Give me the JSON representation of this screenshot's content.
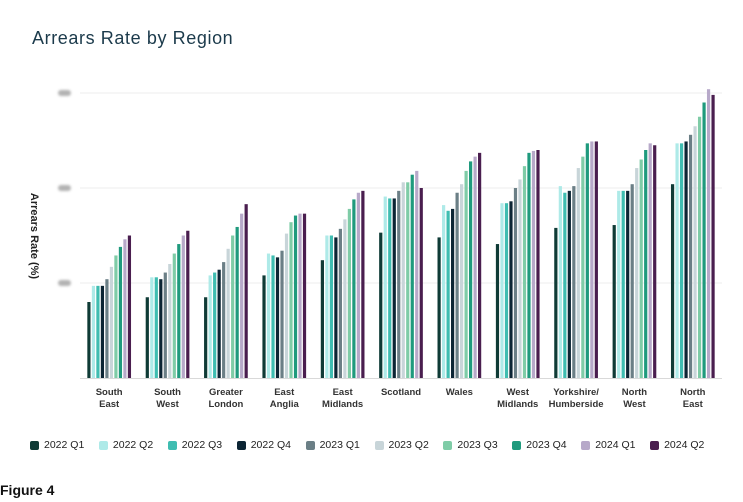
{
  "chart_data": {
    "type": "bar",
    "title": "Arrears Rate by Region",
    "xlabel": "",
    "ylabel": "Arrears Rate (%)",
    "ylim": [
      0,
      3.0
    ],
    "y_ticks": [
      1.0,
      2.0,
      3.0
    ],
    "y_ticks_obscured": true,
    "grid": true,
    "legend_position": "bottom",
    "categories": [
      [
        "South",
        "East"
      ],
      [
        "South",
        "West"
      ],
      [
        "Greater",
        "London"
      ],
      [
        "East",
        "Anglia"
      ],
      [
        "East",
        "Midlands"
      ],
      [
        "Scotland"
      ],
      [
        "Wales"
      ],
      [
        "West",
        "Midlands"
      ],
      [
        "Yorkshire/",
        "Humberside"
      ],
      [
        "North",
        "West"
      ],
      [
        "North",
        "East"
      ]
    ],
    "series": [
      {
        "name": "2022 Q1",
        "color": "#0f3b36",
        "values": [
          0.8,
          0.85,
          0.85,
          1.08,
          1.24,
          1.53,
          1.48,
          1.41,
          1.58,
          1.61,
          2.04
        ]
      },
      {
        "name": "2022 Q2",
        "color": "#aeeae8",
        "values": [
          0.97,
          1.06,
          1.08,
          1.31,
          1.5,
          1.91,
          1.82,
          1.84,
          2.02,
          1.97,
          2.47
        ]
      },
      {
        "name": "2022 Q3",
        "color": "#3fbdb1",
        "values": [
          0.97,
          1.06,
          1.11,
          1.29,
          1.5,
          1.89,
          1.76,
          1.84,
          1.95,
          1.97,
          2.47
        ]
      },
      {
        "name": "2022 Q4",
        "color": "#0c2534",
        "values": [
          0.97,
          1.04,
          1.14,
          1.27,
          1.48,
          1.89,
          1.78,
          1.86,
          1.97,
          1.97,
          2.49
        ]
      },
      {
        "name": "2023 Q1",
        "color": "#6b7f86",
        "values": [
          1.04,
          1.11,
          1.22,
          1.34,
          1.57,
          1.97,
          1.95,
          2.0,
          2.02,
          2.04,
          2.56
        ]
      },
      {
        "name": "2023 Q2",
        "color": "#c8d5d9",
        "values": [
          1.17,
          1.2,
          1.36,
          1.52,
          1.67,
          2.06,
          2.04,
          2.09,
          2.21,
          2.21,
          2.65
        ]
      },
      {
        "name": "2023 Q3",
        "color": "#7fcca7",
        "values": [
          1.29,
          1.31,
          1.5,
          1.64,
          1.78,
          2.06,
          2.18,
          2.23,
          2.33,
          2.3,
          2.75
        ]
      },
      {
        "name": "2023 Q4",
        "color": "#1f9a7d",
        "values": [
          1.38,
          1.41,
          1.59,
          1.71,
          1.88,
          2.14,
          2.28,
          2.37,
          2.47,
          2.4,
          2.9
        ]
      },
      {
        "name": "2024 Q1",
        "color": "#b7a9c9",
        "values": [
          1.46,
          1.5,
          1.73,
          1.73,
          1.95,
          2.18,
          2.33,
          2.39,
          2.49,
          2.47,
          3.04
        ]
      },
      {
        "name": "2024 Q2",
        "color": "#4a1e4f",
        "values": [
          1.5,
          1.55,
          1.83,
          1.73,
          1.97,
          2.0,
          2.37,
          2.4,
          2.49,
          2.45,
          2.98
        ]
      }
    ]
  },
  "caption": "Figure 4"
}
